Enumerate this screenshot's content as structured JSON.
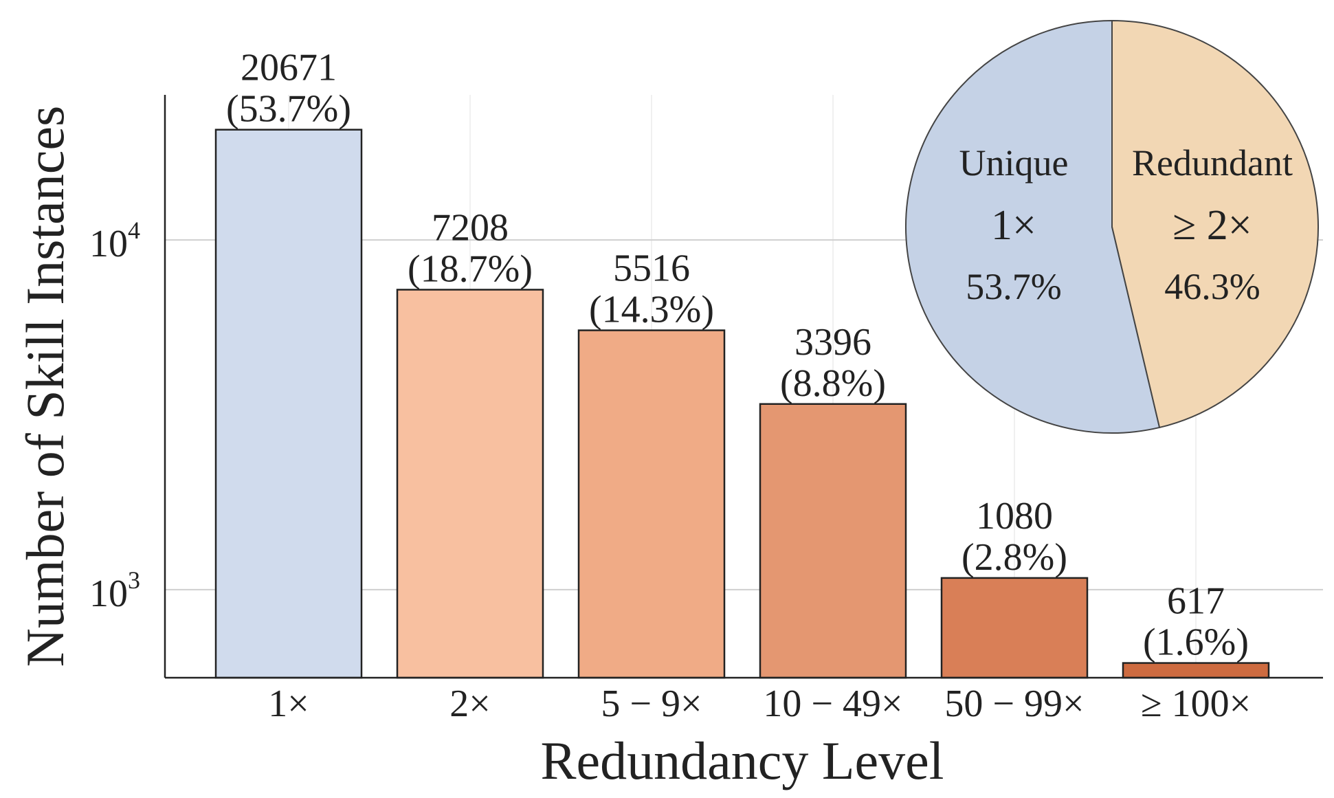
{
  "chart_data": [
    {
      "type": "bar",
      "title": "",
      "xlabel": "Redundancy Level",
      "ylabel": "Number of Skill Instances",
      "yscale": "log",
      "ylim": [
        560,
        26000
      ],
      "grid": true,
      "categories": [
        "1×",
        "2×",
        "5 − 9×",
        "10 − 49×",
        "50 − 99×",
        "≥ 100×"
      ],
      "values": [
        20671,
        7208,
        5516,
        3396,
        1080,
        617
      ],
      "percent_labels": [
        "(53.7%)",
        "(18.7%)",
        "(14.3%)",
        "(8.8%)",
        "(2.8%)",
        "(1.6%)"
      ],
      "value_labels": [
        "20671",
        "7208",
        "5516",
        "3396",
        "1080",
        "617"
      ],
      "y_ticks": [
        {
          "value": 1000,
          "base": "10",
          "exp": "3"
        },
        {
          "value": 10000,
          "base": "10",
          "exp": "4"
        }
      ],
      "colors": [
        "#d0dbed",
        "#f8c0a0",
        "#f0ab86",
        "#e49771",
        "#d97f57",
        "#cd6b40"
      ]
    },
    {
      "type": "pie",
      "slices": [
        {
          "label": "Unique",
          "sublabel": "1×",
          "value": 53.7,
          "percent_label": "53.7%",
          "color": "#c5d2e6"
        },
        {
          "label": "Redundant",
          "sublabel": "≥ 2×",
          "value": 46.3,
          "percent_label": "46.3%",
          "color": "#f2d7b4"
        }
      ]
    }
  ]
}
